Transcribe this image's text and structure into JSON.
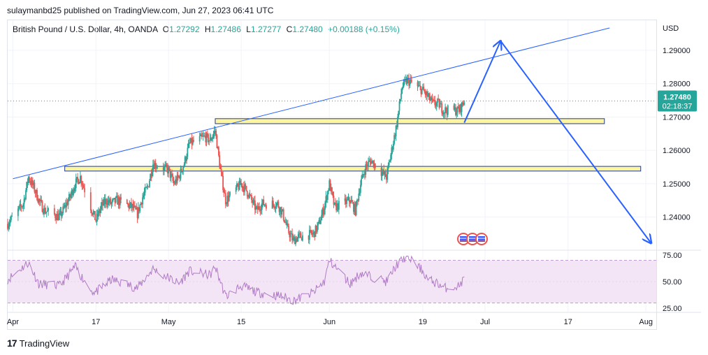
{
  "header": {
    "publisher_line": "sulaymanbd25 published on TradingView.com, Jun 27, 2023 06:41 UTC"
  },
  "legend": {
    "symbol": "British Pound / U.S. Dollar, 4h, OANDA",
    "o_label": "O",
    "o_value": "1.27292",
    "h_label": "H",
    "h_value": "1.27486",
    "l_label": "L",
    "l_value": "1.27277",
    "c_label": "C",
    "c_value": "1.27480",
    "change": "+0.00188 (+0.15%)"
  },
  "price_scale": {
    "currency": "USD",
    "ticks": [
      "1.29000",
      "1.28000",
      "1.27000",
      "1.26000",
      "1.25000",
      "1.24000"
    ],
    "last_price": "1.27480",
    "countdown": "02:18:37"
  },
  "rsi_scale": {
    "ticks": [
      "75.00",
      "50.00",
      "25.00"
    ]
  },
  "time_axis": {
    "labels": [
      "Apr",
      "17",
      "May",
      "15",
      "Jun",
      "19",
      "Jul",
      "17",
      "Aug"
    ]
  },
  "footer": {
    "brand": "TradingView"
  },
  "colors": {
    "up": "#26a69a",
    "down": "#ef5350",
    "trendline": "#2962ff",
    "zone_fill": "#fff59d",
    "rsi_line": "#b07cc6",
    "rsi_band": "#f3e5f5",
    "last_price_bg": "#26a69a"
  },
  "chart_data": {
    "type": "candlestick",
    "title": "British Pound / U.S. Dollar, 4h, OANDA",
    "x_range": [
      "2023-03-31",
      "2023-08-03"
    ],
    "ylim": [
      1.2305,
      1.299
    ],
    "close_path": [
      [
        "2023-03-31",
        1.238
      ],
      [
        "2023-04-03",
        1.244
      ],
      [
        "2023-04-04",
        1.252
      ],
      [
        "2023-04-05",
        1.249
      ],
      [
        "2023-04-06",
        1.245
      ],
      [
        "2023-04-07",
        1.242
      ],
      [
        "2023-04-10",
        1.24
      ],
      [
        "2023-04-11",
        1.243
      ],
      [
        "2023-04-12",
        1.246
      ],
      [
        "2023-04-13",
        1.25
      ],
      [
        "2023-04-14",
        1.252
      ],
      [
        "2023-04-16",
        1.243
      ],
      [
        "2023-04-17",
        1.239
      ],
      [
        "2023-04-18",
        1.243
      ],
      [
        "2023-04-19",
        1.245
      ],
      [
        "2023-04-20",
        1.244
      ],
      [
        "2023-04-21",
        1.245
      ],
      [
        "2023-04-24",
        1.243
      ],
      [
        "2023-04-25",
        1.241
      ],
      [
        "2023-04-26",
        1.246
      ],
      [
        "2023-04-27",
        1.249
      ],
      [
        "2023-04-28",
        1.256
      ],
      [
        "2023-05-01",
        1.254
      ],
      [
        "2023-05-02",
        1.25
      ],
      [
        "2023-05-03",
        1.252
      ],
      [
        "2023-05-04",
        1.256
      ],
      [
        "2023-05-05",
        1.262
      ],
      [
        "2023-05-08",
        1.264
      ],
      [
        "2023-05-09",
        1.263
      ],
      [
        "2023-05-10",
        1.266
      ],
      [
        "2023-05-11",
        1.254
      ],
      [
        "2023-05-12",
        1.245
      ],
      [
        "2023-05-15",
        1.25
      ],
      [
        "2023-05-16",
        1.248
      ],
      [
        "2023-05-17",
        1.245
      ],
      [
        "2023-05-18",
        1.242
      ],
      [
        "2023-05-19",
        1.244
      ],
      [
        "2023-05-22",
        1.244
      ],
      [
        "2023-05-23",
        1.241
      ],
      [
        "2023-05-24",
        1.236
      ],
      [
        "2023-05-25",
        1.233
      ],
      [
        "2023-05-26",
        1.234
      ],
      [
        "2023-05-29",
        1.235
      ],
      [
        "2023-05-30",
        1.238
      ],
      [
        "2023-05-31",
        1.243
      ],
      [
        "2023-06-01",
        1.25
      ],
      [
        "2023-06-02",
        1.243
      ],
      [
        "2023-06-05",
        1.245
      ],
      [
        "2023-06-06",
        1.242
      ],
      [
        "2023-06-07",
        1.25
      ],
      [
        "2023-06-08",
        1.255
      ],
      [
        "2023-06-09",
        1.257
      ],
      [
        "2023-06-12",
        1.252
      ],
      [
        "2023-06-13",
        1.26
      ],
      [
        "2023-06-14",
        1.268
      ],
      [
        "2023-06-15",
        1.279
      ],
      [
        "2023-06-16",
        1.281
      ],
      [
        "2023-06-19",
        1.278
      ],
      [
        "2023-06-20",
        1.276
      ],
      [
        "2023-06-21",
        1.274
      ],
      [
        "2023-06-22",
        1.274
      ],
      [
        "2023-06-23",
        1.272
      ],
      [
        "2023-06-26",
        1.272
      ],
      [
        "2023-06-27",
        1.2748
      ]
    ],
    "last_price": 1.2748,
    "annotations": {
      "trendline": [
        [
          "2023-04-01",
          1.2515
        ],
        [
          "2023-07-25",
          1.2967
        ]
      ],
      "zone_upper": {
        "from": "2023-05-10",
        "to": "2023-07-24",
        "price": [
          1.268,
          1.2695
        ]
      },
      "zone_lower": {
        "from": "2023-04-11",
        "to": "2023-07-31",
        "price": [
          1.2538,
          1.2552
        ]
      },
      "forecast_path": [
        [
          "2023-06-27",
          1.2683
        ],
        [
          "2023-07-04",
          1.2928
        ],
        [
          "2023-08-02",
          1.2322
        ]
      ]
    },
    "rsi": {
      "ylim": [
        25,
        75
      ],
      "levels": [
        30,
        70
      ],
      "path": [
        [
          "2023-03-31",
          52
        ],
        [
          "2023-04-04",
          68
        ],
        [
          "2023-04-06",
          48
        ],
        [
          "2023-04-10",
          46
        ],
        [
          "2023-04-13",
          64
        ],
        [
          "2023-04-16",
          42
        ],
        [
          "2023-04-17",
          40
        ],
        [
          "2023-04-20",
          52
        ],
        [
          "2023-04-25",
          44
        ],
        [
          "2023-04-28",
          62
        ],
        [
          "2023-05-03",
          48
        ],
        [
          "2023-05-05",
          60
        ],
        [
          "2023-05-09",
          56
        ],
        [
          "2023-05-10",
          64
        ],
        [
          "2023-05-12",
          36
        ],
        [
          "2023-05-15",
          46
        ],
        [
          "2023-05-18",
          40
        ],
        [
          "2023-05-23",
          36
        ],
        [
          "2023-05-25",
          32
        ],
        [
          "2023-05-29",
          40
        ],
        [
          "2023-05-31",
          50
        ],
        [
          "2023-06-01",
          70
        ],
        [
          "2023-06-05",
          48
        ],
        [
          "2023-06-07",
          58
        ],
        [
          "2023-06-12",
          50
        ],
        [
          "2023-06-14",
          66
        ],
        [
          "2023-06-16",
          74
        ],
        [
          "2023-06-19",
          60
        ],
        [
          "2023-06-20",
          52
        ],
        [
          "2023-06-22",
          48
        ],
        [
          "2023-06-23",
          44
        ],
        [
          "2023-06-26",
          46
        ],
        [
          "2023-06-27",
          53
        ]
      ]
    }
  }
}
